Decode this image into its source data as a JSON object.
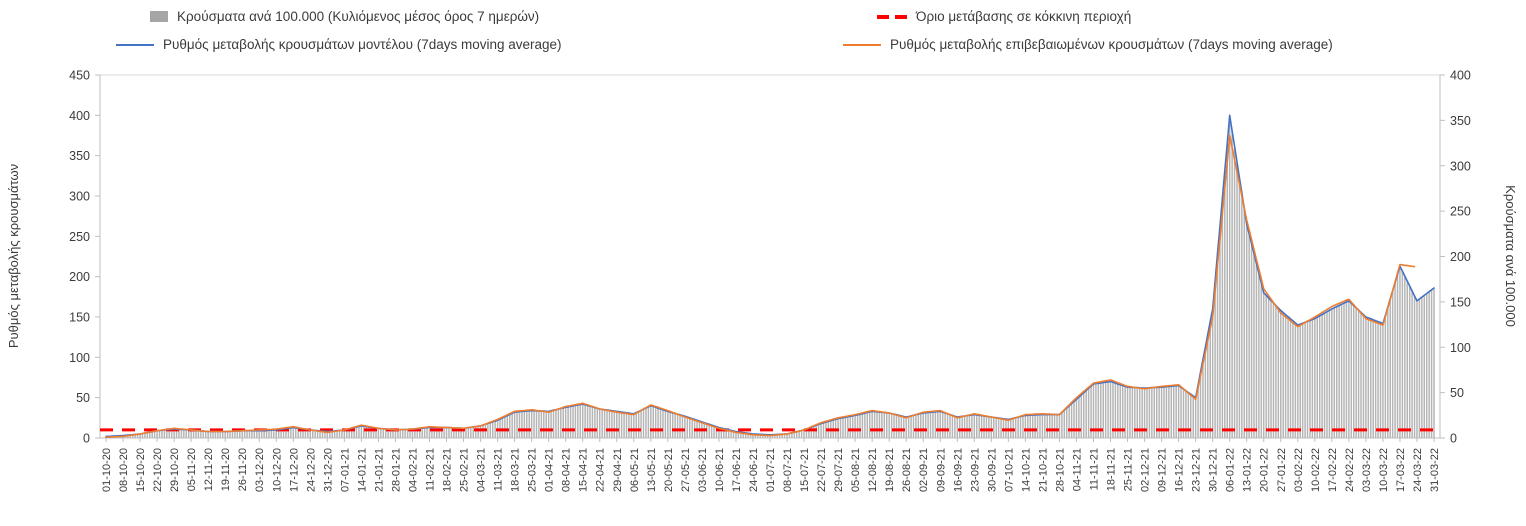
{
  "chart_data": {
    "type": "bar+line",
    "title": "",
    "legend": [
      {
        "label": "Κρούσματα ανά 100.000 (Κυλιόμενος μέσος όρος 7 ημερών)",
        "type": "bars",
        "color": "#a6a6a6"
      },
      {
        "label": "Όριο μετάβασης σε κόκκινη περιοχή",
        "type": "dashed-line",
        "color": "#ff0000"
      },
      {
        "label": "Ρυθμός μεταβολής κρουσμάτων μοντέλου (7days moving average)",
        "type": "line",
        "color": "#4472c4"
      },
      {
        "label": "Ρυθμός μεταβολής επιβεβαιωμένων κρουσμάτων (7days moving average)",
        "type": "line",
        "color": "#ed7d31"
      }
    ],
    "left_axis": {
      "title": "Ρυθμός μεταβολής κρουσμάτων",
      "min": 0,
      "max": 450,
      "ticks": [
        0,
        50,
        100,
        150,
        200,
        250,
        300,
        350,
        400,
        450
      ]
    },
    "right_axis": {
      "title": "Κρούσματα ανά 100.000",
      "min": 0,
      "max": 400,
      "ticks": [
        0,
        50,
        100,
        150,
        200,
        250,
        300,
        350,
        400
      ]
    },
    "threshold": {
      "value": 10,
      "axis": "left",
      "color": "#ff0000",
      "label": "Όριο μετάβασης σε κόκκινη περιοχή"
    },
    "grid": "off",
    "legend_position": "top",
    "x_labels": [
      "01-10-20",
      "08-10-20",
      "15-10-20",
      "22-10-20",
      "29-10-20",
      "05-11-20",
      "12-11-20",
      "19-11-20",
      "26-11-20",
      "03-12-20",
      "10-12-20",
      "17-12-20",
      "24-12-20",
      "31-12-20",
      "07-01-21",
      "14-01-21",
      "21-01-21",
      "28-01-21",
      "04-02-21",
      "11-02-21",
      "18-02-21",
      "25-02-21",
      "04-03-21",
      "11-03-21",
      "18-03-21",
      "25-03-21",
      "01-04-21",
      "08-04-21",
      "15-04-21",
      "22-04-21",
      "29-04-21",
      "06-05-21",
      "13-05-21",
      "20-05-21",
      "27-05-21",
      "03-06-21",
      "10-06-21",
      "17-06-21",
      "24-06-21",
      "01-07-21",
      "08-07-21",
      "15-07-21",
      "22-07-21",
      "29-07-21",
      "05-08-21",
      "12-08-21",
      "19-08-21",
      "26-08-21",
      "02-09-21",
      "09-09-21",
      "16-09-21",
      "23-09-21",
      "30-09-21",
      "07-10-21",
      "14-10-21",
      "21-10-21",
      "28-10-21",
      "04-11-21",
      "11-11-21",
      "18-11-21",
      "25-11-21",
      "02-12-21",
      "09-12-21",
      "16-12-21",
      "23-12-21",
      "30-12-21",
      "06-01-22",
      "13-01-22",
      "20-01-22",
      "27-01-22",
      "03-02-22",
      "10-02-22",
      "17-02-22",
      "24-02-22",
      "03-03-22",
      "10-03-22",
      "17-03-22",
      "24-03-22",
      "31-03-22"
    ],
    "series": [
      {
        "name": "Κρούσματα ανά 100.000 (Κυλιόμενος μέσος όρος 7 ημερών)",
        "kind": "bar",
        "axis": "right",
        "color": "#b5b5b5",
        "values": [
          2,
          3,
          4,
          8,
          10,
          9,
          7,
          7,
          8,
          8,
          9,
          12,
          9,
          7,
          9,
          13,
          11,
          9,
          10,
          12,
          12,
          11,
          13,
          20,
          28,
          30,
          29,
          34,
          37,
          32,
          29,
          27,
          36,
          29,
          24,
          18,
          12,
          7,
          4,
          4,
          4,
          9,
          16,
          21,
          25,
          29,
          28,
          23,
          28,
          29,
          23,
          26,
          23,
          20,
          25,
          26,
          26,
          43,
          60,
          62,
          56,
          55,
          56,
          58,
          44,
          142,
          355,
          235,
          160,
          140,
          124,
          131,
          142,
          151,
          133,
          126,
          189,
          151,
          165
        ]
      },
      {
        "name": "Ρυθμός μεταβολής κρουσμάτων μοντέλου (7days moving average)",
        "kind": "line",
        "axis": "left",
        "color": "#4472c4",
        "values": [
          2,
          3,
          5,
          9,
          11,
          10,
          8,
          8,
          9,
          9,
          10,
          13,
          10,
          8,
          10,
          15,
          12,
          10,
          11,
          13,
          13,
          12,
          15,
          22,
          32,
          34,
          33,
          38,
          42,
          36,
          33,
          30,
          40,
          33,
          27,
          20,
          13,
          8,
          5,
          4,
          5,
          10,
          18,
          24,
          28,
          33,
          31,
          26,
          31,
          33,
          26,
          29,
          26,
          23,
          28,
          29,
          29,
          48,
          67,
          70,
          63,
          62,
          63,
          65,
          50,
          160,
          400,
          265,
          180,
          158,
          140,
          148,
          160,
          170,
          150,
          142,
          213,
          170,
          186
        ]
      },
      {
        "name": "Ρυθμός μεταβολής επιβεβαιωμένων κρουσμάτων (7days moving average)",
        "kind": "line",
        "axis": "left",
        "color": "#ed7d31",
        "values": [
          1,
          2,
          5,
          9,
          12,
          10,
          8,
          8,
          9,
          10,
          11,
          14,
          10,
          7,
          10,
          16,
          12,
          10,
          11,
          14,
          13,
          12,
          15,
          23,
          33,
          35,
          32,
          39,
          43,
          36,
          32,
          29,
          41,
          34,
          26,
          19,
          12,
          7,
          4,
          3,
          5,
          10,
          19,
          25,
          29,
          34,
          31,
          25,
          32,
          34,
          25,
          30,
          26,
          22,
          29,
          30,
          29,
          50,
          68,
          72,
          64,
          61,
          64,
          66,
          48,
          150,
          375,
          270,
          185,
          155,
          138,
          150,
          163,
          172,
          148,
          140,
          215,
          212,
          null
        ]
      }
    ]
  }
}
